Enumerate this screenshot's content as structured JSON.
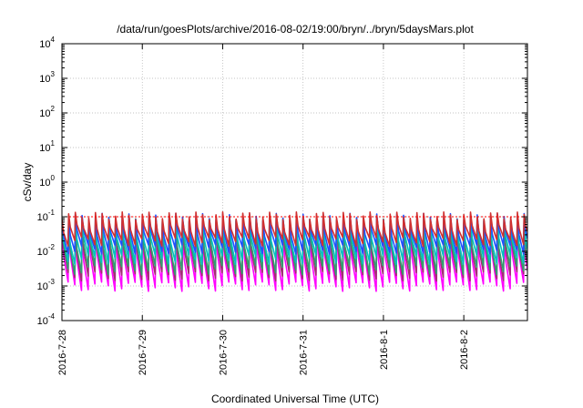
{
  "chart_data": {
    "type": "line",
    "title": "/data/run/goesPlots/archive/2016-08-02/19:00/bryn/../bryn/5daysMars.plot",
    "xlabel": "Coordinated Universal Time (UTC)",
    "ylabel": "cSv/day",
    "yscale": "log",
    "ylim": [
      0.0001,
      10000
    ],
    "xlim": [
      "2016-07-28",
      "2016-08-02 19:00"
    ],
    "x_ticks": [
      "2016-7-28",
      "2016-7-29",
      "2016-7-30",
      "2016-7-31",
      "2016-8-1",
      "2016-8-2"
    ],
    "y_ticks": [
      {
        "base": "10",
        "exp": "4"
      },
      {
        "base": "10",
        "exp": "3"
      },
      {
        "base": "10",
        "exp": "2"
      },
      {
        "base": "10",
        "exp": "1"
      },
      {
        "base": "10",
        "exp": "0"
      },
      {
        "base": "10",
        "exp": "-1"
      },
      {
        "base": "10",
        "exp": "-2"
      },
      {
        "base": "10",
        "exp": "-3"
      },
      {
        "base": "10",
        "exp": "-4"
      }
    ],
    "grid": true,
    "reference_line": {
      "y": 0.1,
      "color": "#ff0000"
    },
    "cycles_per_day": 12,
    "series": [
      {
        "color": "#ff00ff",
        "peak": 0.045,
        "trough": 0.001
      },
      {
        "color": "#a03070",
        "peak": 0.06,
        "trough": 0.002
      },
      {
        "color": "#30a070",
        "peak": 0.07,
        "trough": 0.003
      },
      {
        "color": "#00c0c0",
        "peak": 0.08,
        "trough": 0.006
      },
      {
        "color": "#2050ff",
        "peak": 0.1,
        "trough": 0.012
      },
      {
        "color": "#d03030",
        "peak": 0.11,
        "trough": 0.02
      }
    ]
  }
}
